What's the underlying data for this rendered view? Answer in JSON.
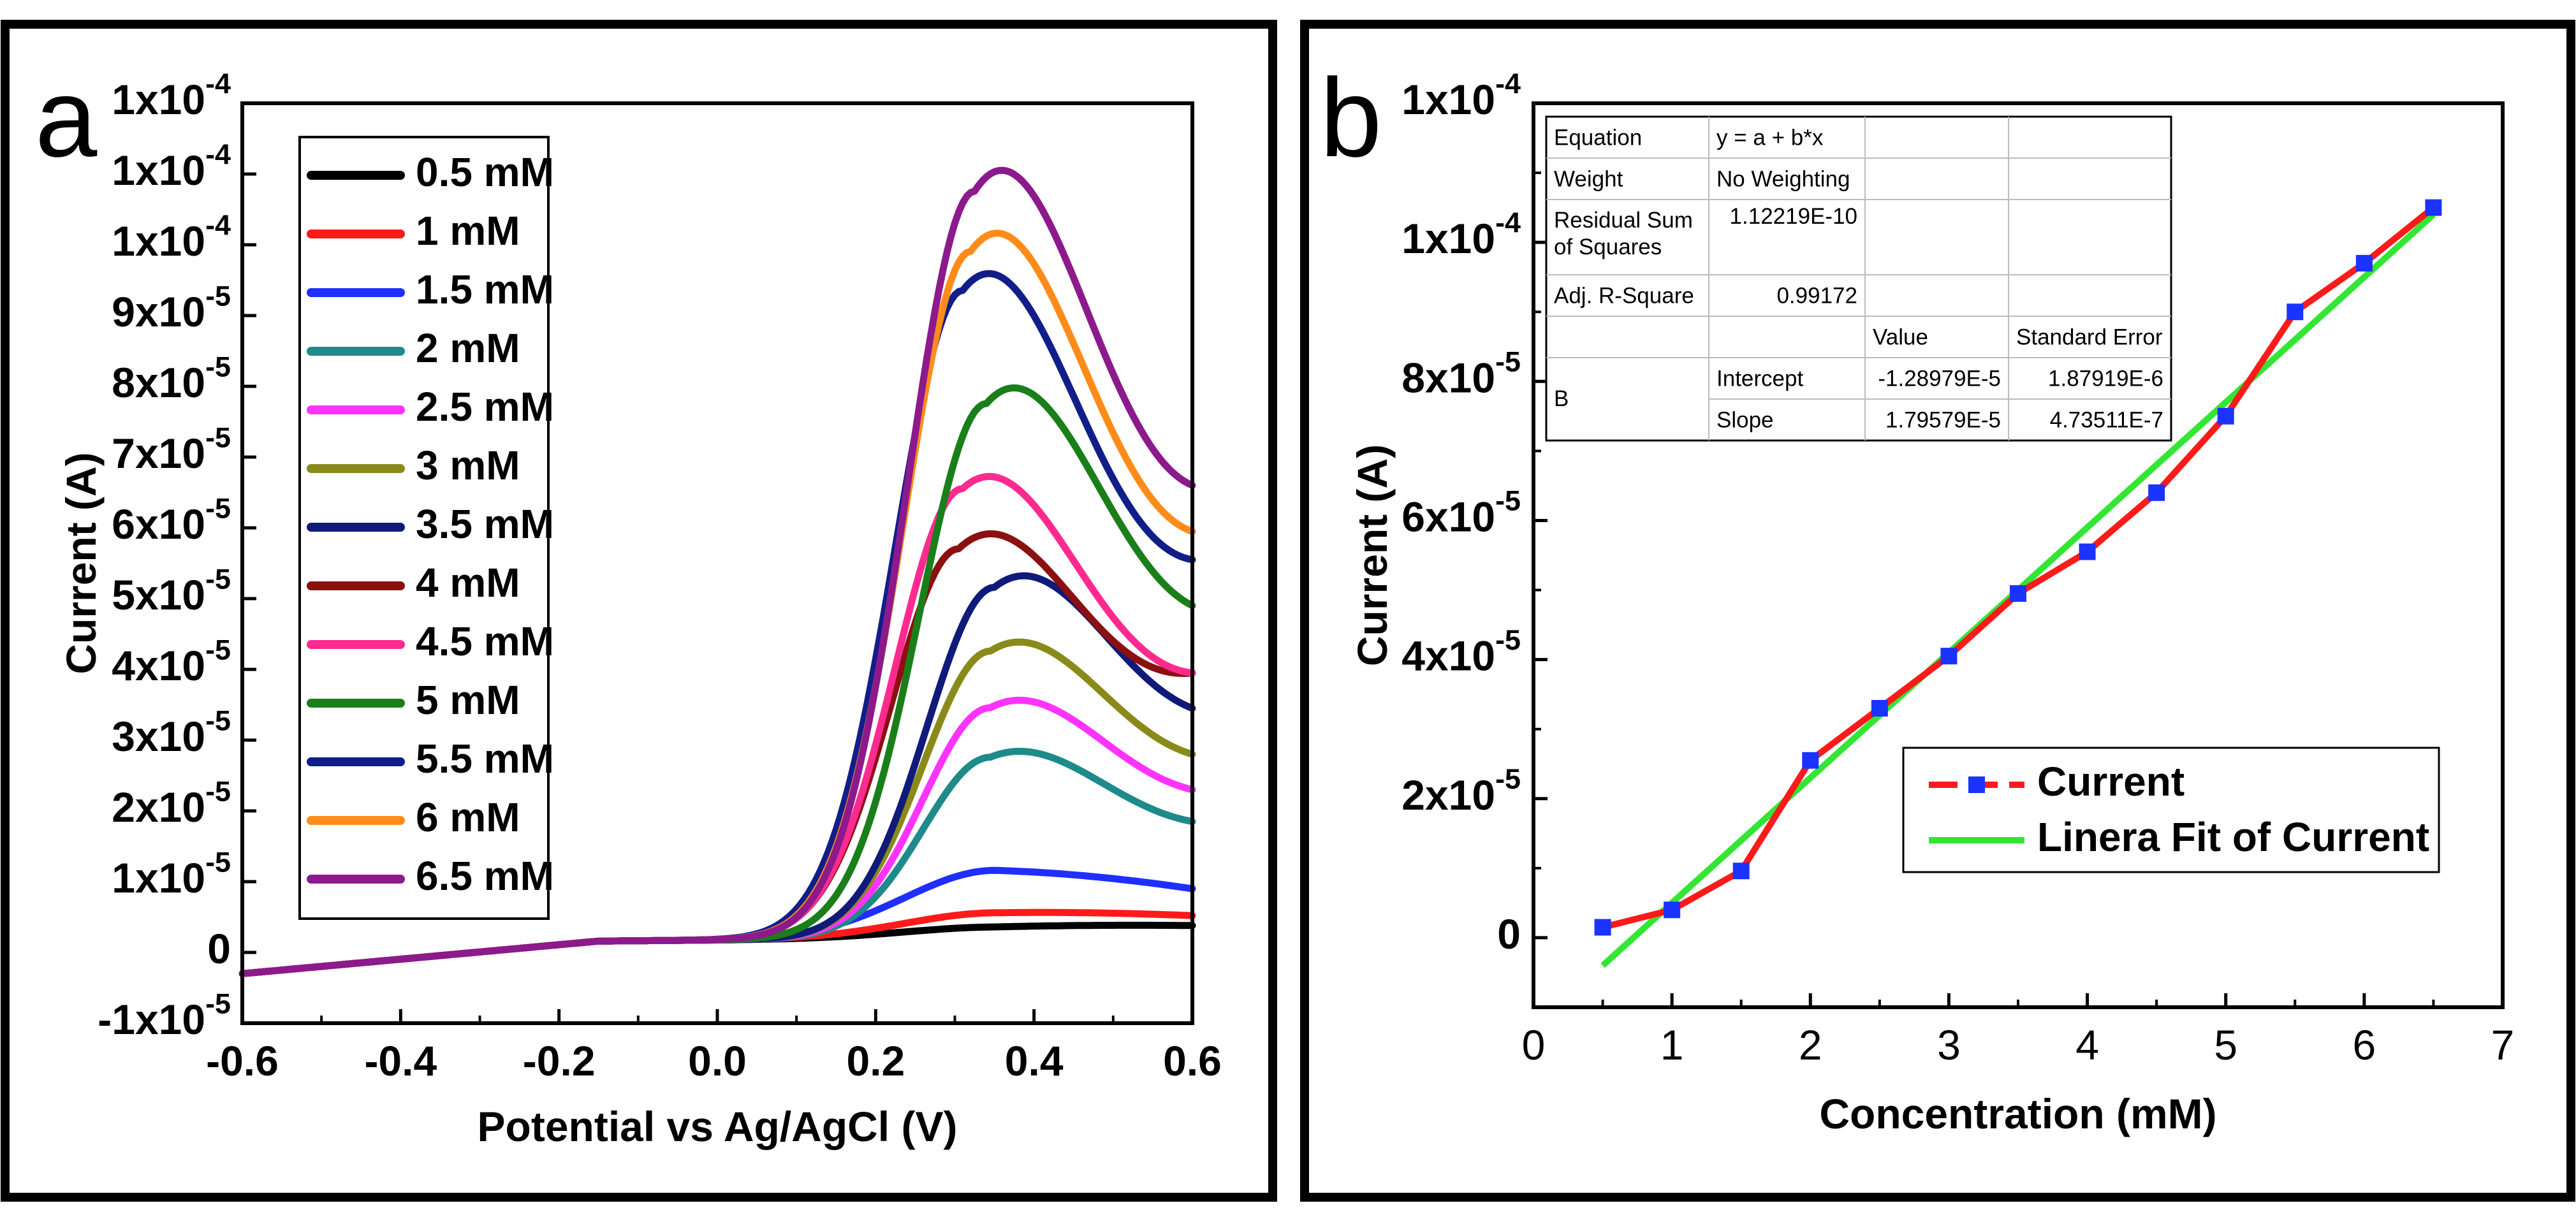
{
  "chart_data": [
    {
      "type": "line",
      "panel_label": "a",
      "xlabel": "Potential vs Ag/AgCl (V)",
      "ylabel": "Current (A)",
      "xlim": [
        -0.6,
        0.6
      ],
      "ylim": [
        -1e-05,
        0.00012
      ],
      "x_ticks": [
        {
          "v": -0.6,
          "label": "-0.6"
        },
        {
          "v": -0.4,
          "label": "-0.4"
        },
        {
          "v": -0.2,
          "label": "-0.2"
        },
        {
          "v": 0.0,
          "label": "0.0"
        },
        {
          "v": 0.2,
          "label": "0.2"
        },
        {
          "v": 0.4,
          "label": "0.4"
        },
        {
          "v": 0.6,
          "label": "0.6"
        }
      ],
      "y_ticks": [
        {
          "v": -1e-05,
          "m": "-1x10",
          "e": "-5"
        },
        {
          "v": 0,
          "m": "0",
          "e": ""
        },
        {
          "v": 1e-05,
          "m": "1x10",
          "e": "-5"
        },
        {
          "v": 2e-05,
          "m": "2x10",
          "e": "-5"
        },
        {
          "v": 3e-05,
          "m": "3x10",
          "e": "-5"
        },
        {
          "v": 4e-05,
          "m": "4x10",
          "e": "-5"
        },
        {
          "v": 5e-05,
          "m": "5x10",
          "e": "-5"
        },
        {
          "v": 6e-05,
          "m": "6x10",
          "e": "-5"
        },
        {
          "v": 7e-05,
          "m": "7x10",
          "e": "-5"
        },
        {
          "v": 8e-05,
          "m": "8x10",
          "e": "-5"
        },
        {
          "v": 9e-05,
          "m": "9x10",
          "e": "-5"
        },
        {
          "v": 0.0001,
          "m": "1x10",
          "e": "-4"
        },
        {
          "v": 0.00011,
          "m": "1x10",
          "e": "-4"
        },
        {
          "v": 0.00012,
          "m": "1x10",
          "e": "-4"
        }
      ],
      "legend_position": "top-left",
      "series": [
        {
          "name": "0.5 mM",
          "color": "#000000",
          "peak": 1.5e-06,
          "peak_v": 0.35,
          "end": 3.8e-06
        },
        {
          "name": "1 mM",
          "color": "#ff1a1a",
          "peak": 3.5e-06,
          "peak_v": 0.35,
          "end": 5.2e-06
        },
        {
          "name": "1.5 mM",
          "color": "#1f2fff",
          "peak": 9.5e-06,
          "peak_v": 0.35,
          "end": 9e-06
        },
        {
          "name": "2 mM",
          "color": "#1e8a8a",
          "peak": 2.55e-05,
          "peak_v": 0.345,
          "end": 1.85e-05
        },
        {
          "name": "2.5 mM",
          "color": "#ff33ff",
          "peak": 3.25e-05,
          "peak_v": 0.345,
          "end": 2.3e-05
        },
        {
          "name": "3 mM",
          "color": "#8a8a1a",
          "peak": 4.05e-05,
          "peak_v": 0.345,
          "end": 2.8e-05
        },
        {
          "name": "3.5 mM",
          "color": "#101a7a",
          "peak": 4.95e-05,
          "peak_v": 0.35,
          "end": 3.45e-05
        },
        {
          "name": "4 mM",
          "color": "#8b1010",
          "peak": 5.5e-05,
          "peak_v": 0.305,
          "end": 3.95e-05
        },
        {
          "name": "4.5 mM",
          "color": "#ff2a90",
          "peak": 6.35e-05,
          "peak_v": 0.31,
          "end": 3.95e-05
        },
        {
          "name": "5 mM",
          "color": "#1a7f1a",
          "peak": 7.55e-05,
          "peak_v": 0.34,
          "end": 4.9e-05
        },
        {
          "name": "5.5 mM",
          "color": "#111e8a",
          "peak": 9.15e-05,
          "peak_v": 0.31,
          "end": 5.55e-05
        },
        {
          "name": "6 mM",
          "color": "#ff8c1a",
          "peak": 9.7e-05,
          "peak_v": 0.32,
          "end": 5.95e-05
        },
        {
          "name": "6.5 mM",
          "color": "#8c1a8c",
          "peak": 0.0001055,
          "peak_v": 0.325,
          "end": 6.6e-05
        }
      ]
    },
    {
      "type": "line",
      "panel_label": "b",
      "xlabel": "Concentration (mM)",
      "ylabel": "Current (A)",
      "xlim": [
        0,
        7
      ],
      "ylim": [
        -1e-05,
        0.00012
      ],
      "x_ticks": [
        {
          "v": 0,
          "label": "0"
        },
        {
          "v": 1,
          "label": "1"
        },
        {
          "v": 2,
          "label": "2"
        },
        {
          "v": 3,
          "label": "3"
        },
        {
          "v": 4,
          "label": "4"
        },
        {
          "v": 5,
          "label": "5"
        },
        {
          "v": 6,
          "label": "6"
        },
        {
          "v": 7,
          "label": "7"
        }
      ],
      "y_ticks": [
        {
          "v": 0,
          "m": "0",
          "e": ""
        },
        {
          "v": 2e-05,
          "m": "2x10",
          "e": "-5"
        },
        {
          "v": 4e-05,
          "m": "4x10",
          "e": "-5"
        },
        {
          "v": 6e-05,
          "m": "6x10",
          "e": "-5"
        },
        {
          "v": 8e-05,
          "m": "8x10",
          "e": "-5"
        },
        {
          "v": 0.0001,
          "m": "1x10",
          "e": "-4"
        },
        {
          "v": 0.00012,
          "m": "1x10",
          "e": "-4"
        }
      ],
      "series": [
        {
          "name": "Current",
          "color": "#ff1a1a",
          "marker_color": "#1a33ff",
          "x": [
            0.5,
            1,
            1.5,
            2,
            2.5,
            3,
            3.5,
            4,
            4.5,
            5,
            5.5,
            6,
            6.5
          ],
          "y": [
            1.5e-06,
            4e-06,
            9.6e-06,
            2.55e-05,
            3.3e-05,
            4.05e-05,
            4.95e-05,
            5.55e-05,
            6.4e-05,
            7.5e-05,
            9e-05,
            9.7e-05,
            0.000105
          ]
        },
        {
          "name": "Linera Fit of Current",
          "color": "#33e633",
          "x": [
            0.5,
            6.5
          ],
          "y": [
            -4e-06,
            0.000104
          ]
        }
      ],
      "fit_table": {
        "rows": [
          [
            "Equation",
            "y = a + b*x",
            "",
            ""
          ],
          [
            "Weight",
            "No Weighting",
            "",
            ""
          ],
          [
            "Residual Sum of Squares",
            "1.12219E-10",
            "",
            ""
          ],
          [
            "Adj. R-Square",
            "0.99172",
            "",
            ""
          ],
          [
            "",
            "",
            "Value",
            "Standard Error"
          ],
          [
            "B",
            "Intercept",
            "-1.28979E-5",
            "1.87919E-6"
          ],
          [
            "",
            "Slope",
            "1.79579E-5",
            "4.73511E-7"
          ]
        ]
      },
      "legend_position": "bottom-right"
    }
  ]
}
